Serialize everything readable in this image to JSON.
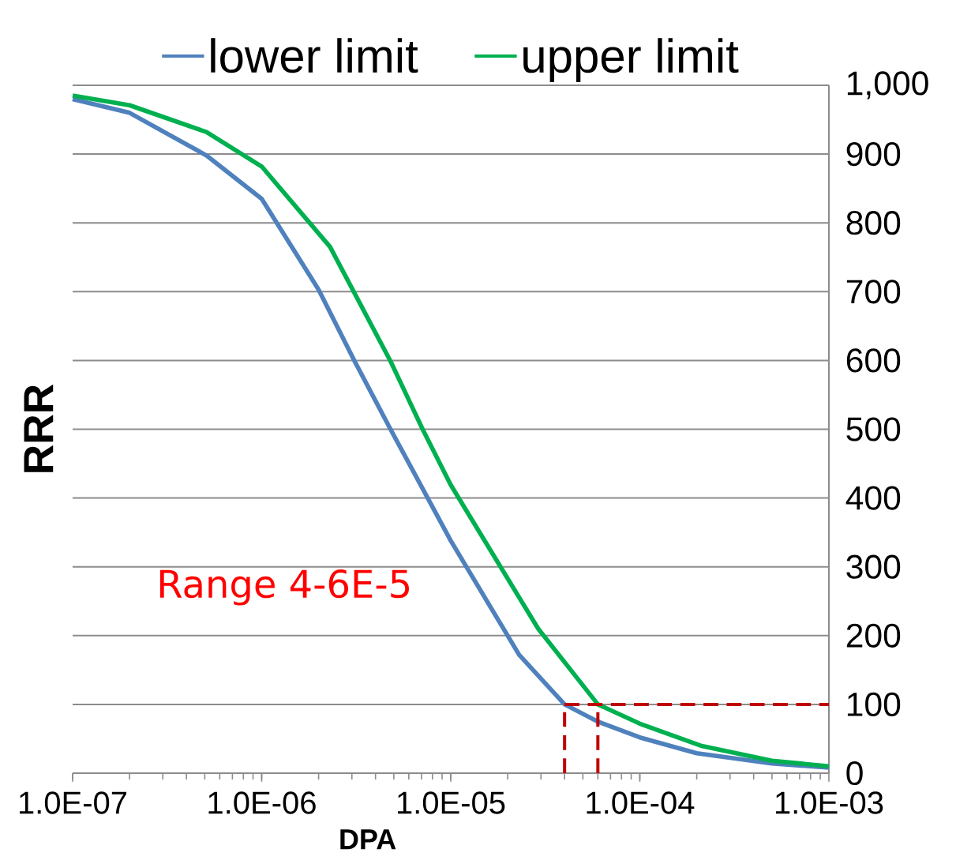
{
  "chart_data": {
    "type": "line",
    "xlabel": "DPA",
    "ylabel": "RRR",
    "log": "x",
    "grid": "y",
    "legend": "top",
    "marker": "none",
    "line_style": "solid",
    "xlim": [
      1e-07,
      0.001
    ],
    "ylim": [
      0,
      1000
    ],
    "xticks": [
      {
        "value": 1e-07,
        "label": "1.0E-07"
      },
      {
        "value": 1e-06,
        "label": "1.0E-06"
      },
      {
        "value": 1e-05,
        "label": "1.0E-05"
      },
      {
        "value": 0.0001,
        "label": "1.0E-04"
      },
      {
        "value": 0.001,
        "label": "1.0E-03"
      }
    ],
    "yticks": [
      0,
      100,
      200,
      300,
      400,
      500,
      600,
      700,
      800,
      900,
      {
        "value": 1000,
        "label": "1,000"
      }
    ],
    "series": [
      {
        "name": "lower limit",
        "color": "#4f81bd",
        "x": [
          1e-07,
          2e-07,
          5.1e-07,
          1e-06,
          2e-06,
          3.1e-06,
          4.8e-06,
          1e-05,
          2.3e-05,
          4e-05,
          6e-05,
          0.0001,
          0.0002,
          0.0005,
          0.001
        ],
        "values": [
          980,
          960,
          898,
          835,
          703,
          599,
          500,
          338,
          172,
          100,
          75,
          52,
          29,
          14,
          8
        ]
      },
      {
        "name": "upper limit",
        "color": "#00b050",
        "x": [
          1e-07,
          2e-07,
          5.1e-07,
          1e-06,
          2.3e-06,
          4.8e-06,
          7.1e-06,
          1e-05,
          2.9e-05,
          6e-05,
          0.0001,
          0.00021,
          0.0005,
          0.001
        ],
        "values": [
          985,
          971,
          932,
          882,
          765,
          599,
          500,
          419,
          210,
          100,
          72,
          40,
          18,
          10
        ]
      }
    ],
    "ref_lines": [
      {
        "axis": "y",
        "value": 100,
        "color": "#c00000",
        "line_style": "dashed"
      },
      {
        "axis": "x",
        "value": 4e-05,
        "color": "#c00000",
        "line_style": "dashed"
      },
      {
        "axis": "x",
        "value": 6e-05,
        "color": "#c00000",
        "line_style": "dashed"
      }
    ],
    "annotations": [
      "Range 4-6E-5"
    ]
  }
}
